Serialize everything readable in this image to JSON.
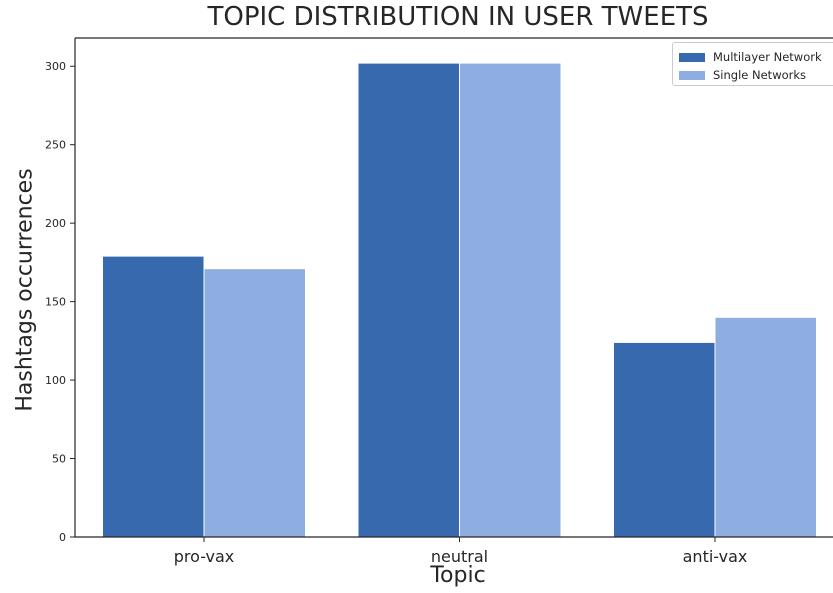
{
  "chart_data": {
    "type": "bar",
    "title": "TOPIC DISTRIBUTION IN USER TWEETS",
    "xlabel": "Topic",
    "ylabel": "Hashtags occurrences",
    "categories": [
      "pro-vax",
      "neutral",
      "anti-vax"
    ],
    "series": [
      {
        "name": "Multilayer Network",
        "values": [
          179,
          302,
          124
        ],
        "color": "#3669ad"
      },
      {
        "name": "Single Networks",
        "values": [
          171,
          302,
          140
        ],
        "color": "#8eaee2"
      }
    ],
    "ylim": [
      0,
      318
    ],
    "yticks": [
      0,
      50,
      100,
      150,
      200,
      250,
      300
    ],
    "grid": false,
    "legend_position": "top-right"
  }
}
